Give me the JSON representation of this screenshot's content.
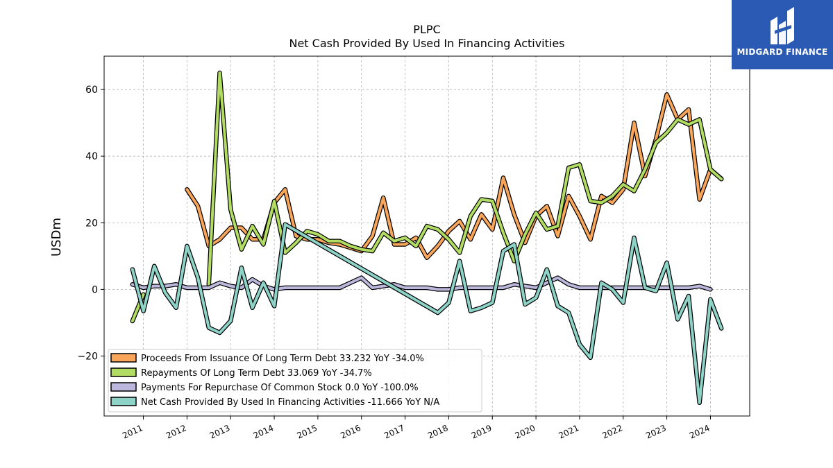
{
  "brand": {
    "name": "MIDGARD FINANCE",
    "color": "#2a5ab3"
  },
  "chart_data": {
    "type": "line",
    "title": "PLPC",
    "subtitle": "Net Cash Provided By Used In Financing Activities",
    "ylabel": "USDm",
    "xlabel": "",
    "ylim": [
      -38,
      70
    ],
    "xlim": [
      2010.1,
      2024.9
    ],
    "yticks": [
      -20,
      0,
      20,
      40,
      60
    ],
    "ytick_labels": [
      "−20",
      "0",
      "20",
      "40",
      "60"
    ],
    "xticks": [
      2011,
      2012,
      2013,
      2014,
      2015,
      2016,
      2017,
      2018,
      2019,
      2020,
      2021,
      2022,
      2023,
      2024
    ],
    "xtick_labels": [
      "2011",
      "2012",
      "2013",
      "2014",
      "2015",
      "2016",
      "2017",
      "2018",
      "2019",
      "2020",
      "2021",
      "2022",
      "2023",
      "2024"
    ],
    "grid": true,
    "legend_position": "lower-left",
    "series": [
      {
        "name": "Proceeds From Issuance Of Long Term Debt",
        "legend_label": "Proceeds From Issuance Of Long Term Debt  33.232 YoY -34.0%",
        "color": "#f9a65a",
        "x": [
          2012.0,
          2012.25,
          2012.5,
          2012.75,
          2013.0,
          2013.25,
          2013.5,
          2013.75,
          2014.0,
          2014.25,
          2014.5,
          2014.75,
          2015.0,
          2015.25,
          2015.5,
          2015.75,
          2016.0,
          2016.25,
          2016.5,
          2016.75,
          2017.0,
          2017.25,
          2017.5,
          2017.75,
          2018.0,
          2018.25,
          2018.5,
          2018.75,
          2019.0,
          2019.25,
          2019.5,
          2019.75,
          2020.0,
          2020.25,
          2020.5,
          2020.75,
          2021.0,
          2021.25,
          2021.5,
          2021.75,
          2022.0,
          2022.25,
          2022.5,
          2022.75,
          2023.0,
          2023.25,
          2023.5,
          2023.75,
          2024.0,
          2024.25
        ],
        "values": [
          30,
          25,
          13,
          15,
          18.5,
          18.5,
          15,
          15,
          26,
          30,
          16,
          15,
          15,
          14,
          13.5,
          12.5,
          11.5,
          16,
          27.5,
          13.5,
          13.5,
          15.5,
          9.5,
          13,
          17.5,
          20.5,
          15,
          22.5,
          18,
          33.5,
          22.5,
          14,
          22,
          25,
          16,
          28,
          22,
          15,
          28,
          26,
          30,
          50,
          34,
          45,
          58.5,
          51,
          54,
          27,
          36,
          33.2
        ]
      },
      {
        "name": "Repayments Of Long Term Debt",
        "legend_label": "Repayments Of Long Term Debt  33.069 YoY -34.7%",
        "color": "#b2dd63",
        "x": [
          2010.75,
          2011.0,
          2011.25,
          2011.5,
          2011.75,
          2012.0,
          2012.25,
          2012.5,
          2012.75,
          2013.0,
          2013.25,
          2013.5,
          2013.75,
          2014.0,
          2014.25,
          2014.5,
          2014.75,
          2015.0,
          2015.25,
          2015.5,
          2015.75,
          2016.0,
          2016.25,
          2016.5,
          2016.75,
          2017.0,
          2017.25,
          2017.5,
          2017.75,
          2018.0,
          2018.25,
          2018.5,
          2018.75,
          2019.0,
          2019.25,
          2019.5,
          2019.75,
          2020.0,
          2020.25,
          2020.5,
          2020.75,
          2021.0,
          2021.25,
          2021.5,
          2021.75,
          2022.0,
          2022.25,
          2022.5,
          2022.75,
          2023.0,
          2023.25,
          2023.5,
          2023.75,
          2024.0,
          2024.25
        ],
        "values": [
          -9.5,
          -1.5,
          null,
          null,
          null,
          null,
          null,
          1.5,
          65,
          24,
          12,
          19,
          13.5,
          26.5,
          11,
          14,
          17.5,
          16.5,
          14.5,
          14.5,
          13,
          12,
          11.5,
          17,
          14.5,
          15.5,
          13,
          19,
          18,
          15,
          11,
          22,
          27,
          26.5,
          17,
          8.5,
          16.5,
          23,
          18,
          19,
          36.5,
          37.5,
          26.5,
          26,
          28,
          31.5,
          29.5,
          36,
          44,
          47,
          51,
          49.5,
          51,
          36,
          33.1
        ]
      },
      {
        "name": "Payments For Repurchase Of Common Stock",
        "legend_label": "Payments For Repurchase Of Common Stock  0.0 YoY -100.0%",
        "color": "#bcb7dc",
        "x": [
          2010.75,
          2011.0,
          2011.25,
          2011.5,
          2011.75,
          2012.0,
          2012.25,
          2012.5,
          2012.75,
          2013.0,
          2013.25,
          2013.5,
          2013.75,
          2014.0,
          2014.25,
          2014.5,
          2014.75,
          2015.0,
          2015.25,
          2015.5,
          2015.75,
          2016.0,
          2016.25,
          2016.5,
          2016.75,
          2017.0,
          2017.25,
          2017.5,
          2017.75,
          2018.0,
          2018.25,
          2018.5,
          2018.75,
          2019.0,
          2019.25,
          2019.5,
          2019.75,
          2020.0,
          2020.25,
          2020.5,
          2020.75,
          2021.0,
          2021.25,
          2021.5,
          2021.75,
          2022.0,
          2022.25,
          2022.5,
          2022.75,
          2023.0,
          2023.25,
          2023.5,
          2023.75,
          2024.0
        ],
        "values": [
          1.5,
          0.5,
          1.0,
          1.0,
          1.5,
          0.5,
          0.5,
          0.5,
          2.0,
          1.0,
          0.5,
          3.0,
          1.0,
          0.0,
          0.5,
          0.5,
          0.5,
          0.5,
          0.5,
          0.5,
          2.0,
          3.5,
          0.5,
          1.0,
          1.5,
          0.5,
          0.5,
          0.5,
          0.0,
          0.0,
          0.5,
          0.5,
          0.5,
          0.5,
          0.5,
          1.5,
          1.0,
          0.5,
          2.0,
          3.5,
          1.5,
          0.5,
          0.5,
          0.5,
          0.5,
          0.5,
          0.5,
          0.5,
          0.5,
          0.5,
          0.5,
          0.5,
          1.0,
          0.0
        ]
      },
      {
        "name": "Net Cash Provided By Used In Financing Activities",
        "legend_label": "Net Cash Provided By Used In Financing Activities  -11.666 YoY N/A",
        "color": "#8dd3c7",
        "x": [
          2010.75,
          2011.0,
          2011.25,
          2011.5,
          2011.75,
          2012.0,
          2012.25,
          2012.5,
          2012.75,
          2013.0,
          2013.25,
          2013.5,
          2013.75,
          2014.0,
          2014.25,
          2017.75,
          2018.0,
          2018.25,
          2018.5,
          2018.75,
          2019.0,
          2019.25,
          2019.5,
          2019.75,
          2020.0,
          2020.25,
          2020.5,
          2020.75,
          2021.0,
          2021.25,
          2021.5,
          2021.75,
          2022.0,
          2022.25,
          2022.5,
          2022.75,
          2023.0,
          2023.25,
          2023.5,
          2023.75,
          2024.0,
          2024.25
        ],
        "values": [
          6,
          -6.5,
          7,
          -1,
          -5.5,
          13,
          3.5,
          -11.5,
          -13,
          -9.5,
          6.5,
          -5.5,
          2,
          -5,
          19.5,
          -7,
          -4,
          8.5,
          -6.5,
          -5.5,
          -4,
          11.5,
          13.5,
          -4.5,
          -2.5,
          6,
          -5,
          -7,
          -16.5,
          -20.5,
          2,
          0,
          -4,
          15.5,
          0.5,
          -0.5,
          8,
          -9,
          -2,
          -34,
          -3,
          -11.7
        ]
      }
    ]
  }
}
